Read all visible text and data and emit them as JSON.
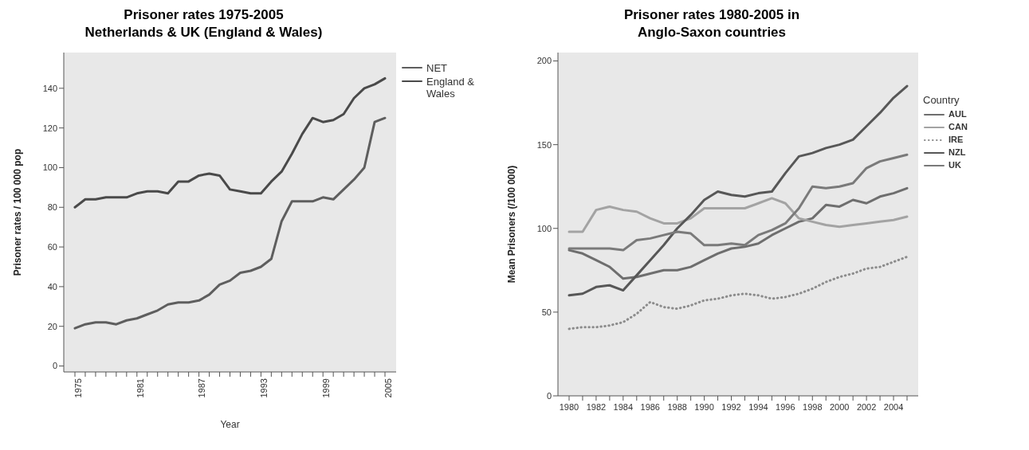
{
  "chart_data": [
    {
      "type": "line",
      "title": "Prisoner rates 1975-2005\nNetherlands & UK (England & Wales)",
      "xlabel": "Year",
      "ylabel": "Prisoner rates / 100 000 pop",
      "categories": [
        "1975",
        null,
        null,
        null,
        null,
        null,
        "1981",
        null,
        null,
        null,
        null,
        null,
        "1987",
        null,
        null,
        null,
        null,
        null,
        "1993",
        null,
        null,
        null,
        null,
        null,
        "1999",
        null,
        null,
        null,
        null,
        null,
        "2005"
      ],
      "series": [
        {
          "name": "NET",
          "color": "#5e5e5e",
          "values": [
            19,
            21,
            22,
            22,
            21,
            23,
            24,
            26,
            28,
            31,
            32,
            32,
            33,
            36,
            41,
            43,
            47,
            48,
            50,
            54,
            73,
            83,
            83,
            83,
            85,
            84,
            89,
            94,
            100,
            123,
            125
          ]
        },
        {
          "name": "England & Wales",
          "color": "#4a4a4a",
          "values": [
            80,
            84,
            84,
            85,
            85,
            85,
            87,
            88,
            88,
            87,
            93,
            93,
            96,
            97,
            96,
            89,
            88,
            87,
            87,
            93,
            98,
            107,
            117,
            125,
            123,
            124,
            127,
            135,
            140,
            142,
            145
          ]
        }
      ],
      "ylim": [
        -3,
        158
      ],
      "yticks": [
        0,
        20,
        40,
        60,
        80,
        100,
        120,
        140
      ],
      "legend": "top right",
      "line_style": "solid"
    },
    {
      "type": "line",
      "title": "Prisoner rates 1980-2005 in\nAnglo-Saxon countries",
      "ylabel": "Mean Prisoners (/100 000)",
      "legend_title": "Country",
      "categories": [
        "1980",
        null,
        "1982",
        null,
        "1984",
        null,
        "1986",
        null,
        "1988",
        null,
        "1990",
        null,
        "1992",
        null,
        "1994",
        null,
        "1996",
        null,
        "1998",
        null,
        "2000",
        null,
        "2002",
        null,
        "2004",
        null
      ],
      "series": [
        {
          "name": "AUL",
          "color": "#6e6e6e",
          "values": [
            87,
            85,
            81,
            77,
            70,
            71,
            73,
            75,
            75,
            77,
            81,
            85,
            88,
            89,
            91,
            96,
            100,
            104,
            106,
            114,
            113,
            117,
            115,
            119,
            121,
            124
          ]
        },
        {
          "name": "CAN",
          "color": "#a3a3a3",
          "values": [
            98,
            98,
            111,
            113,
            111,
            110,
            106,
            103,
            103,
            106,
            112,
            112,
            112,
            112,
            115,
            118,
            115,
            106,
            104,
            102,
            101,
            102,
            103,
            104,
            105,
            107
          ]
        },
        {
          "name": "IRE",
          "color": "#8c8c8c",
          "line_style": "dotted",
          "values": [
            40,
            41,
            41,
            42,
            44,
            49,
            56,
            53,
            52,
            54,
            57,
            58,
            60,
            61,
            60,
            58,
            59,
            61,
            64,
            68,
            71,
            73,
            76,
            77,
            80,
            83
          ]
        },
        {
          "name": "NZL",
          "color": "#575757",
          "values": [
            60,
            61,
            65,
            66,
            63,
            72,
            81,
            90,
            100,
            108,
            117,
            122,
            120,
            119,
            121,
            122,
            133,
            143,
            145,
            148,
            150,
            153,
            161,
            169,
            178,
            185
          ]
        },
        {
          "name": "UK",
          "color": "#7a7a7a",
          "values": [
            88,
            88,
            88,
            88,
            87,
            93,
            94,
            96,
            98,
            97,
            90,
            90,
            91,
            90,
            96,
            99,
            103,
            112,
            125,
            124,
            125,
            127,
            136,
            140,
            142,
            144
          ]
        }
      ],
      "ylim": [
        0,
        205
      ],
      "yticks": [
        0,
        50,
        100,
        150,
        200
      ],
      "legend": "right",
      "line_style": "solid"
    }
  ]
}
